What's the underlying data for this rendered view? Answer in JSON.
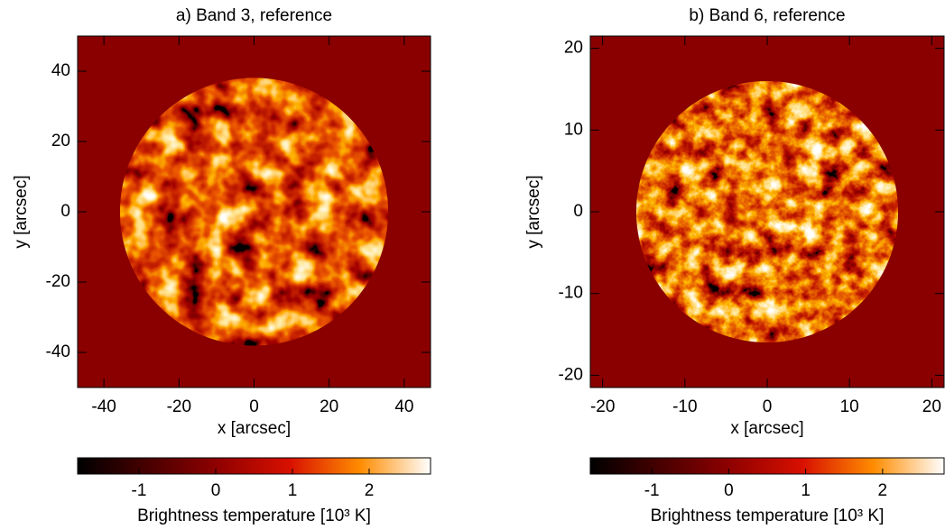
{
  "chart_data": [
    {
      "type": "heatmap",
      "title": "a) Band 3, reference",
      "xlabel": "x [arcsec]",
      "ylabel": "y [arcsec]",
      "xlim": [
        -47,
        47
      ],
      "ylim": [
        -50,
        50
      ],
      "xticks": [
        -40,
        -20,
        0,
        20,
        40
      ],
      "yticks": [
        -40,
        -20,
        0,
        20,
        40
      ],
      "colorbar": {
        "label": "Brightness temperature [10³ K]",
        "lim": [
          -1.8,
          2.8
        ],
        "ticks": [
          -1,
          0,
          1,
          2
        ]
      }
    },
    {
      "type": "heatmap",
      "title": "b) Band 6, reference",
      "xlabel": "x [arcsec]",
      "ylabel": "y [arcsec]",
      "xlim": [
        -21.5,
        21.5
      ],
      "ylim": [
        -21.5,
        21.5
      ],
      "xticks": [
        -20,
        -10,
        0,
        10,
        20
      ],
      "yticks": [
        -20,
        -10,
        0,
        10,
        20
      ],
      "colorbar": {
        "label": "Brightness temperature [10³ K]",
        "lim": [
          -1.8,
          2.8
        ],
        "ticks": [
          -1,
          0,
          1,
          2
        ]
      }
    }
  ]
}
